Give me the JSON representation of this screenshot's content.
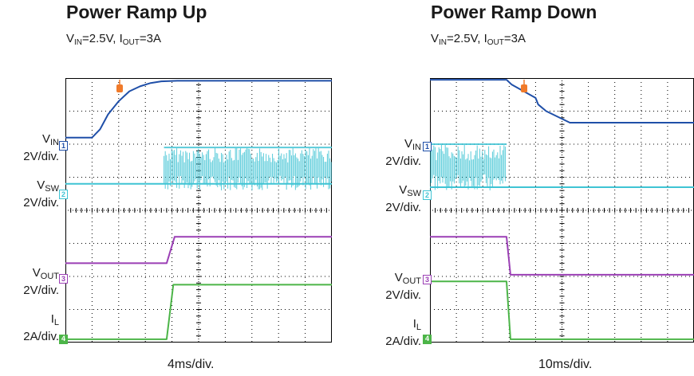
{
  "colors": {
    "vin": "#1f4fa8",
    "vsw": "#3fc4d4",
    "vout": "#9b3fb5",
    "il": "#4cb548",
    "trigger": "#f07a2a",
    "grid": "#000000"
  },
  "chart_data": [
    {
      "type": "line",
      "title": "Power Ramp Up",
      "subtitle": {
        "vin": "V",
        "vin_sub": "IN",
        "vin_val": "=2.5V, ",
        "iout": "I",
        "iout_sub": "OUT",
        "iout_val": "=3A"
      },
      "xlabel": "4ms/div.",
      "x_divisions": 10,
      "y_divisions": 8,
      "grid": true,
      "channels": [
        {
          "id": "1",
          "name": "V",
          "sub": "IN",
          "scale": "2V/div.",
          "color": "vin",
          "x": [
            0,
            1.0,
            1.3,
            1.6,
            2.0,
            2.4,
            2.8,
            3.2,
            3.6,
            4.2,
            10
          ],
          "y": [
            6.2,
            6.2,
            6.45,
            6.9,
            7.3,
            7.6,
            7.75,
            7.85,
            7.9,
            7.92,
            7.92
          ]
        },
        {
          "id": "2",
          "name": "V",
          "sub": "SW",
          "scale": "2V/div.",
          "color": "vsw",
          "x": [
            0,
            3.7,
            10
          ],
          "y": [
            4.8,
            4.8,
            4.8
          ],
          "switching_from": 3.7,
          "switching_low": 4.6,
          "switching_high": 5.9
        },
        {
          "id": "3",
          "name": "V",
          "sub": "OUT",
          "scale": "2V/div.",
          "color": "vout",
          "x": [
            0,
            3.8,
            4.1,
            10
          ],
          "y": [
            2.4,
            2.4,
            3.2,
            3.2
          ]
        },
        {
          "id": "4",
          "name": "I",
          "sub": "L",
          "scale": "2A/div.",
          "color": "il",
          "x": [
            0,
            3.8,
            4.05,
            10
          ],
          "y": [
            0.1,
            0.1,
            1.75,
            1.75
          ]
        }
      ]
    },
    {
      "type": "line",
      "title": "Power Ramp Down",
      "subtitle": {
        "vin": "V",
        "vin_sub": "IN",
        "vin_val": "=2.5V, ",
        "iout": "I",
        "iout_sub": "OUT",
        "iout_val": "=3A"
      },
      "xlabel": "10ms/div.",
      "x_divisions": 10,
      "y_divisions": 8,
      "grid": true,
      "channels": [
        {
          "id": "1",
          "name": "V",
          "sub": "IN",
          "scale": "2V/div.",
          "color": "vin",
          "x": [
            0,
            2.9,
            3.1,
            4.0,
            4.1,
            4.4,
            5.3,
            10
          ],
          "y": [
            7.95,
            7.95,
            7.8,
            7.4,
            7.2,
            7.0,
            6.65,
            6.65
          ]
        },
        {
          "id": "2",
          "name": "V",
          "sub": "SW",
          "scale": "2V/div.",
          "color": "vsw",
          "x": [
            0,
            10
          ],
          "y": [
            4.7,
            4.7
          ],
          "switching_until": 2.9,
          "switching_low": 4.6,
          "switching_high": 6.0
        },
        {
          "id": "3",
          "name": "V",
          "sub": "OUT",
          "scale": "2V/div.",
          "color": "vout",
          "x": [
            0,
            2.9,
            3.05,
            10
          ],
          "y": [
            3.2,
            3.2,
            2.05,
            2.05
          ]
        },
        {
          "id": "4",
          "name": "I",
          "sub": "L",
          "scale": "2A/div.",
          "color": "il",
          "x": [
            0,
            2.9,
            3.05,
            10
          ],
          "y": [
            1.85,
            1.85,
            0.1,
            0.1
          ]
        }
      ]
    }
  ]
}
